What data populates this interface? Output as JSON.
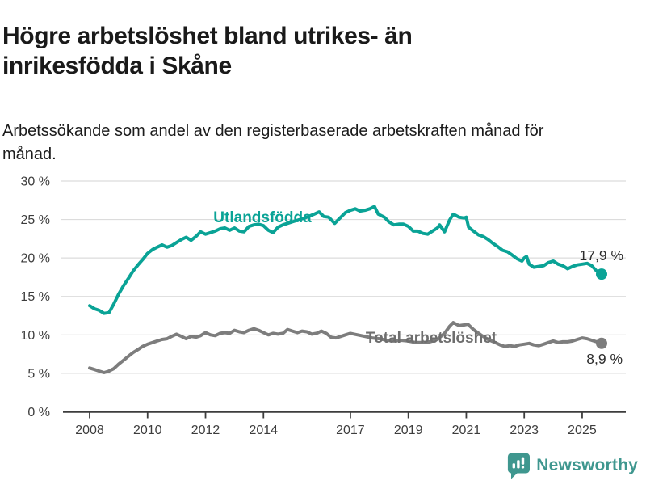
{
  "header": {
    "title": "Högre arbetslöshet bland utrikes- än inrikesfödda i Skåne",
    "subtitle": "Arbetssökande som andel av den registerbaserade arbetskraften månad för månad."
  },
  "footer": {
    "brand": "Newsworthy"
  },
  "colors": {
    "foreign_line": "#0aa396",
    "total_line": "#7d7d7d",
    "total_label": "#6e6e6e",
    "axis": "#3d3d3d",
    "grid": "#dcdcdc",
    "value_label": "#2b2b2b",
    "brand_teal": "#3f978f"
  },
  "chart_data": {
    "type": "line",
    "title": "Högre arbetslöshet bland utrikes- än inrikesfödda i Skåne",
    "subtitle": "Arbetssökande som andel av den registerbaserade arbetskraften månad för månad.",
    "grid": true,
    "x_axis": {
      "ticks": [
        2008,
        2010,
        2012,
        2014,
        2017,
        2019,
        2021,
        2023,
        2025
      ],
      "range": [
        2007.1,
        2026.4
      ]
    },
    "y_axis": {
      "ticks": [
        0,
        5,
        10,
        15,
        20,
        25,
        30
      ],
      "tick_labels": [
        "0 %",
        "5 %",
        "10 %",
        "15 %",
        "20 %",
        "25 %",
        "30 %"
      ],
      "range": [
        0,
        30
      ],
      "unit": "%"
    },
    "series": [
      {
        "name": "Utlandsfödda",
        "color": "#0aa396",
        "end_label": "17,9 %",
        "end_value": 17.9,
        "points": [
          [
            2008.0,
            13.8
          ],
          [
            2008.17,
            13.4
          ],
          [
            2008.33,
            13.2
          ],
          [
            2008.5,
            12.8
          ],
          [
            2008.67,
            12.9
          ],
          [
            2008.83,
            14.0
          ],
          [
            2009.0,
            15.3
          ],
          [
            2009.17,
            16.4
          ],
          [
            2009.33,
            17.3
          ],
          [
            2009.5,
            18.3
          ],
          [
            2009.67,
            19.1
          ],
          [
            2009.83,
            19.8
          ],
          [
            2010.0,
            20.6
          ],
          [
            2010.17,
            21.1
          ],
          [
            2010.33,
            21.4
          ],
          [
            2010.5,
            21.7
          ],
          [
            2010.67,
            21.4
          ],
          [
            2010.83,
            21.6
          ],
          [
            2011.0,
            22.0
          ],
          [
            2011.17,
            22.4
          ],
          [
            2011.33,
            22.7
          ],
          [
            2011.5,
            22.3
          ],
          [
            2011.67,
            22.8
          ],
          [
            2011.83,
            23.4
          ],
          [
            2012.0,
            23.1
          ],
          [
            2012.17,
            23.3
          ],
          [
            2012.33,
            23.5
          ],
          [
            2012.5,
            23.8
          ],
          [
            2012.67,
            23.9
          ],
          [
            2012.83,
            23.6
          ],
          [
            2013.0,
            23.9
          ],
          [
            2013.17,
            23.5
          ],
          [
            2013.33,
            23.4
          ],
          [
            2013.5,
            24.1
          ],
          [
            2013.67,
            24.3
          ],
          [
            2013.83,
            24.4
          ],
          [
            2014.0,
            24.2
          ],
          [
            2014.17,
            23.6
          ],
          [
            2014.33,
            23.3
          ],
          [
            2014.5,
            24.0
          ],
          [
            2014.67,
            24.3
          ],
          [
            2014.83,
            24.5
          ],
          [
            2015.0,
            24.7
          ],
          [
            2015.25,
            25.0
          ],
          [
            2015.5,
            25.3
          ],
          [
            2015.75,
            25.7
          ],
          [
            2015.92,
            26.0
          ],
          [
            2016.08,
            25.4
          ],
          [
            2016.25,
            25.3
          ],
          [
            2016.46,
            24.5
          ],
          [
            2016.67,
            25.3
          ],
          [
            2016.83,
            25.9
          ],
          [
            2017.0,
            26.2
          ],
          [
            2017.17,
            26.4
          ],
          [
            2017.33,
            26.1
          ],
          [
            2017.5,
            26.2
          ],
          [
            2017.67,
            26.4
          ],
          [
            2017.83,
            26.7
          ],
          [
            2017.96,
            25.7
          ],
          [
            2018.17,
            25.3
          ],
          [
            2018.33,
            24.7
          ],
          [
            2018.5,
            24.3
          ],
          [
            2018.67,
            24.4
          ],
          [
            2018.83,
            24.4
          ],
          [
            2019.0,
            24.1
          ],
          [
            2019.17,
            23.5
          ],
          [
            2019.33,
            23.5
          ],
          [
            2019.5,
            23.2
          ],
          [
            2019.67,
            23.1
          ],
          [
            2019.83,
            23.5
          ],
          [
            2020.0,
            23.9
          ],
          [
            2020.08,
            24.3
          ],
          [
            2020.25,
            23.4
          ],
          [
            2020.42,
            24.9
          ],
          [
            2020.55,
            25.7
          ],
          [
            2020.75,
            25.3
          ],
          [
            2020.92,
            25.2
          ],
          [
            2021.0,
            25.3
          ],
          [
            2021.08,
            24.0
          ],
          [
            2021.25,
            23.5
          ],
          [
            2021.42,
            23.0
          ],
          [
            2021.58,
            22.8
          ],
          [
            2021.75,
            22.4
          ],
          [
            2021.92,
            21.9
          ],
          [
            2022.08,
            21.5
          ],
          [
            2022.25,
            21.0
          ],
          [
            2022.42,
            20.8
          ],
          [
            2022.58,
            20.4
          ],
          [
            2022.75,
            19.9
          ],
          [
            2022.92,
            19.6
          ],
          [
            2023.0,
            20.0
          ],
          [
            2023.08,
            20.2
          ],
          [
            2023.17,
            19.2
          ],
          [
            2023.33,
            18.8
          ],
          [
            2023.5,
            18.9
          ],
          [
            2023.67,
            19.0
          ],
          [
            2023.83,
            19.4
          ],
          [
            2024.0,
            19.6
          ],
          [
            2024.17,
            19.2
          ],
          [
            2024.33,
            19.0
          ],
          [
            2024.5,
            18.6
          ],
          [
            2024.67,
            18.9
          ],
          [
            2024.83,
            19.1
          ],
          [
            2025.0,
            19.2
          ],
          [
            2025.17,
            19.3
          ],
          [
            2025.33,
            19.0
          ],
          [
            2025.5,
            18.3
          ],
          [
            2025.67,
            17.9
          ]
        ]
      },
      {
        "name": "Total arbetslöshet",
        "color": "#7d7d7d",
        "end_label": "8,9 %",
        "end_value": 8.9,
        "points": [
          [
            2008.0,
            5.7
          ],
          [
            2008.17,
            5.5
          ],
          [
            2008.33,
            5.3
          ],
          [
            2008.5,
            5.1
          ],
          [
            2008.67,
            5.3
          ],
          [
            2008.83,
            5.6
          ],
          [
            2009.0,
            6.2
          ],
          [
            2009.17,
            6.7
          ],
          [
            2009.33,
            7.2
          ],
          [
            2009.5,
            7.7
          ],
          [
            2009.67,
            8.1
          ],
          [
            2009.83,
            8.5
          ],
          [
            2010.0,
            8.8
          ],
          [
            2010.17,
            9.0
          ],
          [
            2010.33,
            9.2
          ],
          [
            2010.5,
            9.4
          ],
          [
            2010.67,
            9.5
          ],
          [
            2010.83,
            9.8
          ],
          [
            2011.0,
            10.1
          ],
          [
            2011.17,
            9.8
          ],
          [
            2011.33,
            9.5
          ],
          [
            2011.5,
            9.8
          ],
          [
            2011.67,
            9.7
          ],
          [
            2011.83,
            9.9
          ],
          [
            2012.0,
            10.3
          ],
          [
            2012.17,
            10.0
          ],
          [
            2012.33,
            9.9
          ],
          [
            2012.5,
            10.2
          ],
          [
            2012.67,
            10.3
          ],
          [
            2012.83,
            10.2
          ],
          [
            2013.0,
            10.6
          ],
          [
            2013.17,
            10.4
          ],
          [
            2013.33,
            10.3
          ],
          [
            2013.5,
            10.6
          ],
          [
            2013.67,
            10.8
          ],
          [
            2013.83,
            10.6
          ],
          [
            2014.0,
            10.3
          ],
          [
            2014.17,
            10.0
          ],
          [
            2014.33,
            10.2
          ],
          [
            2014.5,
            10.1
          ],
          [
            2014.67,
            10.2
          ],
          [
            2014.83,
            10.7
          ],
          [
            2015.0,
            10.5
          ],
          [
            2015.17,
            10.3
          ],
          [
            2015.33,
            10.5
          ],
          [
            2015.5,
            10.4
          ],
          [
            2015.67,
            10.1
          ],
          [
            2015.83,
            10.2
          ],
          [
            2016.0,
            10.5
          ],
          [
            2016.17,
            10.2
          ],
          [
            2016.33,
            9.7
          ],
          [
            2016.5,
            9.6
          ],
          [
            2016.67,
            9.8
          ],
          [
            2016.83,
            10.0
          ],
          [
            2017.0,
            10.2
          ],
          [
            2017.25,
            10.0
          ],
          [
            2017.5,
            9.8
          ],
          [
            2017.75,
            9.6
          ],
          [
            2018.0,
            9.5
          ],
          [
            2018.25,
            9.3
          ],
          [
            2018.5,
            9.2
          ],
          [
            2018.75,
            9.3
          ],
          [
            2019.0,
            9.2
          ],
          [
            2019.25,
            9.0
          ],
          [
            2019.5,
            9.0
          ],
          [
            2019.75,
            9.1
          ],
          [
            2020.0,
            9.4
          ],
          [
            2020.25,
            10.2
          ],
          [
            2020.42,
            11.1
          ],
          [
            2020.55,
            11.6
          ],
          [
            2020.75,
            11.2
          ],
          [
            2020.92,
            11.3
          ],
          [
            2021.05,
            11.4
          ],
          [
            2021.25,
            10.7
          ],
          [
            2021.5,
            10.0
          ],
          [
            2021.75,
            9.4
          ],
          [
            2022.0,
            9.0
          ],
          [
            2022.17,
            8.7
          ],
          [
            2022.33,
            8.5
          ],
          [
            2022.5,
            8.6
          ],
          [
            2022.67,
            8.5
          ],
          [
            2022.83,
            8.7
          ],
          [
            2023.0,
            8.8
          ],
          [
            2023.17,
            8.9
          ],
          [
            2023.33,
            8.7
          ],
          [
            2023.5,
            8.6
          ],
          [
            2023.67,
            8.8
          ],
          [
            2023.83,
            9.0
          ],
          [
            2024.0,
            9.2
          ],
          [
            2024.17,
            9.0
          ],
          [
            2024.33,
            9.1
          ],
          [
            2024.5,
            9.1
          ],
          [
            2024.67,
            9.2
          ],
          [
            2024.83,
            9.4
          ],
          [
            2025.0,
            9.6
          ],
          [
            2025.17,
            9.5
          ],
          [
            2025.33,
            9.3
          ],
          [
            2025.5,
            9.1
          ],
          [
            2025.67,
            8.9
          ]
        ]
      }
    ]
  }
}
